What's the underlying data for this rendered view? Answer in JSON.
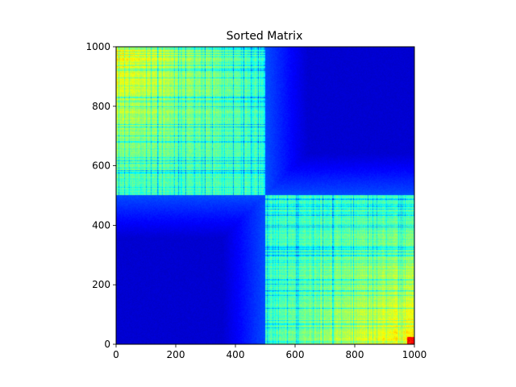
{
  "chart_data": {
    "type": "heatmap",
    "title": "Sorted Matrix",
    "xlabel": "",
    "ylabel": "",
    "colormap": "jet",
    "shape": [
      1000,
      1000
    ],
    "xlim": [
      0,
      1000
    ],
    "ylim": [
      1000,
      0
    ],
    "x_ticks": [
      0,
      200,
      400,
      600,
      800,
      1000
    ],
    "y_ticks": [
      0,
      200,
      400,
      600,
      800,
      1000
    ],
    "x_tick_labels": [
      "0",
      "200",
      "400",
      "600",
      "800",
      "1000"
    ],
    "y_tick_labels": [
      "0",
      "200",
      "400",
      "600",
      "800",
      "1000"
    ],
    "blocks": [
      {
        "rows": [
          0,
          500
        ],
        "cols": [
          0,
          500
        ],
        "level": "high"
      },
      {
        "rows": [
          500,
          1000
        ],
        "cols": [
          500,
          1000
        ],
        "level": "high"
      },
      {
        "rows": [
          0,
          500
        ],
        "cols": [
          500,
          1000
        ],
        "level": "low"
      },
      {
        "rows": [
          500,
          1000
        ],
        "cols": [
          0,
          500
        ],
        "level": "low"
      }
    ],
    "grid": false
  }
}
